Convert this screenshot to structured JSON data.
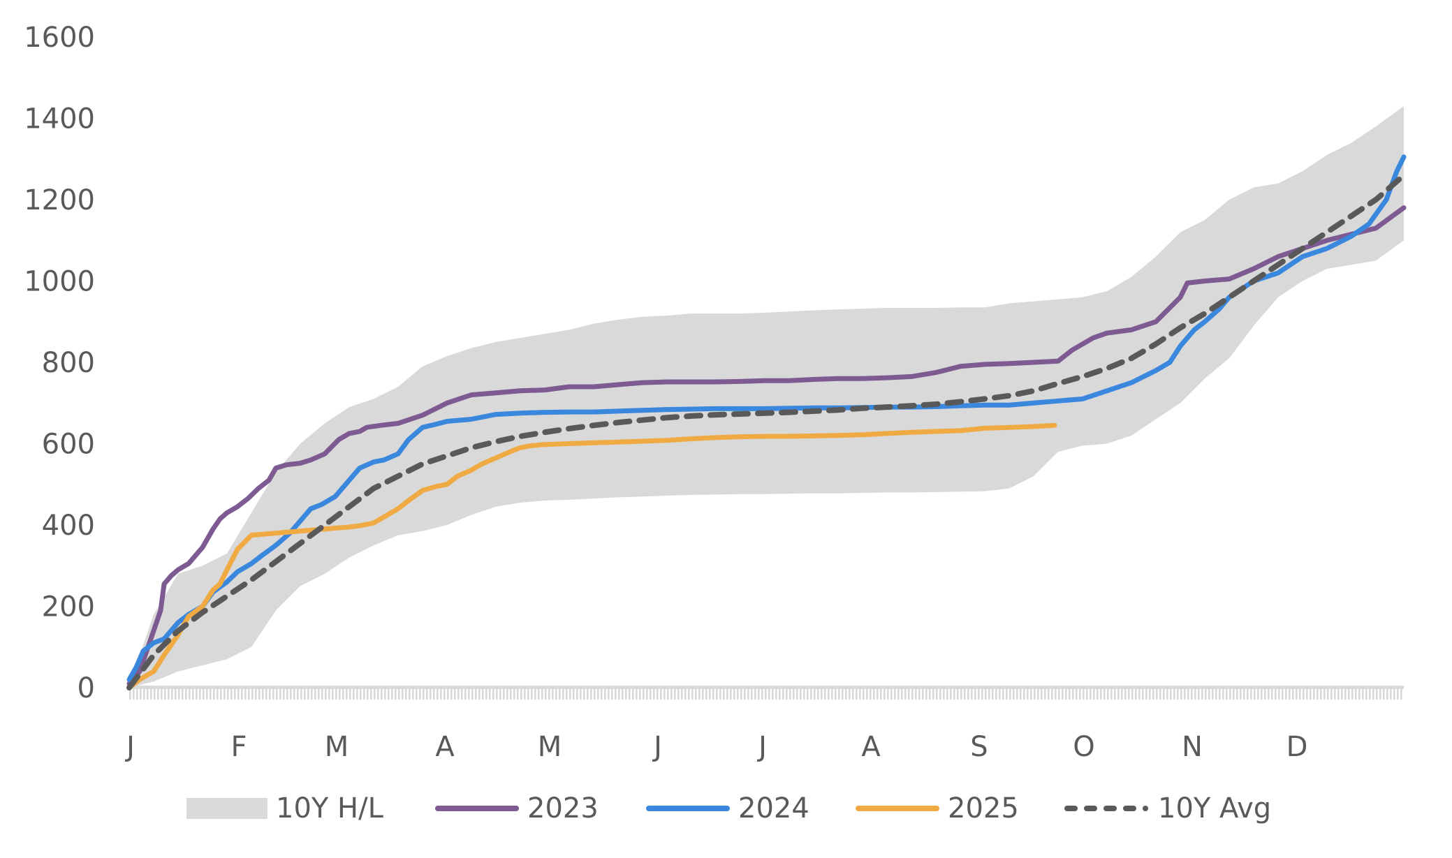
{
  "chart_data": {
    "type": "line",
    "title": "",
    "xlabel": "",
    "ylabel": "",
    "ylim": [
      0,
      1600
    ],
    "yticks": [
      0,
      200,
      400,
      600,
      800,
      1000,
      1200,
      1400,
      1600
    ],
    "xlim_days": [
      0,
      365
    ],
    "xticks": [
      {
        "label": "J",
        "day": 0
      },
      {
        "label": "F",
        "day": 31
      },
      {
        "label": "M",
        "day": 59
      },
      {
        "label": "A",
        "day": 90
      },
      {
        "label": "M",
        "day": 120
      },
      {
        "label": "J",
        "day": 151
      },
      {
        "label": "J",
        "day": 181
      },
      {
        "label": "A",
        "day": 212
      },
      {
        "label": "S",
        "day": 243
      },
      {
        "label": "O",
        "day": 273
      },
      {
        "label": "N",
        "day": 304
      },
      {
        "label": "D",
        "day": 334
      }
    ],
    "grid": false,
    "legend_position": "bottom",
    "band": {
      "name": "10Y H/L",
      "color": "#d9d9d9",
      "x": [
        0,
        7,
        14,
        21,
        28,
        35,
        42,
        49,
        56,
        63,
        70,
        77,
        84,
        91,
        98,
        105,
        112,
        119,
        126,
        133,
        140,
        147,
        154,
        161,
        168,
        175,
        182,
        189,
        196,
        203,
        210,
        217,
        224,
        231,
        238,
        245,
        252,
        259,
        266,
        273,
        280,
        287,
        294,
        301,
        308,
        315,
        322,
        329,
        336,
        343,
        350,
        357,
        365
      ],
      "high": [
        5,
        180,
        280,
        300,
        330,
        430,
        530,
        600,
        650,
        690,
        710,
        740,
        790,
        815,
        835,
        850,
        860,
        870,
        880,
        895,
        905,
        912,
        915,
        920,
        920,
        920,
        922,
        925,
        928,
        930,
        932,
        934,
        934,
        934,
        935,
        935,
        945,
        950,
        955,
        960,
        975,
        1010,
        1060,
        1120,
        1150,
        1200,
        1230,
        1240,
        1270,
        1310,
        1340,
        1380,
        1430
      ],
      "low": [
        0,
        15,
        40,
        55,
        70,
        100,
        190,
        250,
        280,
        320,
        350,
        375,
        385,
        400,
        425,
        445,
        455,
        460,
        462,
        465,
        468,
        470,
        472,
        474,
        475,
        476,
        476,
        477,
        478,
        478,
        479,
        480,
        480,
        481,
        482,
        483,
        490,
        520,
        580,
        595,
        600,
        620,
        660,
        700,
        760,
        810,
        890,
        960,
        1000,
        1030,
        1040,
        1050,
        1100
      ]
    },
    "series": [
      {
        "name": "2023",
        "color": "#7d5a92",
        "dashed": false,
        "x": [
          0,
          3,
          5,
          7,
          9,
          10,
          12,
          14,
          17,
          21,
          24,
          26,
          28,
          31,
          34,
          37,
          40,
          42,
          45,
          49,
          52,
          56,
          60,
          63,
          66,
          68,
          72,
          77,
          84,
          91,
          98,
          105,
          112,
          119,
          126,
          133,
          140,
          147,
          154,
          161,
          168,
          175,
          182,
          189,
          196,
          203,
          210,
          217,
          224,
          231,
          238,
          245,
          252,
          259,
          266,
          270,
          273,
          276,
          280,
          287,
          294,
          301,
          303,
          308,
          315,
          322,
          329,
          336,
          343,
          350,
          357,
          365
        ],
        "y": [
          10,
          40,
          90,
          140,
          190,
          255,
          275,
          290,
          305,
          345,
          390,
          415,
          430,
          445,
          465,
          490,
          510,
          540,
          548,
          552,
          560,
          575,
          610,
          625,
          630,
          640,
          645,
          650,
          670,
          700,
          720,
          725,
          730,
          732,
          740,
          740,
          745,
          750,
          752,
          752,
          752,
          753,
          755,
          755,
          758,
          760,
          760,
          762,
          765,
          775,
          790,
          795,
          797,
          800,
          803,
          830,
          845,
          860,
          872,
          880,
          900,
          960,
          995,
          1000,
          1005,
          1030,
          1060,
          1080,
          1100,
          1115,
          1130,
          1180
        ]
      },
      {
        "name": "2024",
        "color": "#3a87de",
        "dashed": false,
        "x": [
          0,
          2,
          4,
          7,
          10,
          14,
          17,
          21,
          24,
          28,
          31,
          35,
          38,
          42,
          46,
          49,
          52,
          55,
          59,
          63,
          66,
          70,
          73,
          77,
          80,
          84,
          88,
          91,
          98,
          105,
          112,
          119,
          126,
          133,
          140,
          147,
          154,
          161,
          168,
          175,
          182,
          189,
          196,
          203,
          210,
          217,
          224,
          231,
          238,
          245,
          252,
          259,
          266,
          273,
          280,
          287,
          294,
          298,
          301,
          305,
          308,
          312,
          315,
          322,
          329,
          336,
          343,
          350,
          355,
          360,
          363,
          365
        ],
        "y": [
          20,
          50,
          90,
          110,
          120,
          160,
          180,
          200,
          235,
          260,
          285,
          305,
          325,
          350,
          380,
          410,
          440,
          450,
          470,
          510,
          540,
          555,
          560,
          575,
          610,
          640,
          648,
          655,
          660,
          672,
          675,
          677,
          678,
          678,
          680,
          682,
          684,
          685,
          686,
          686,
          686,
          687,
          688,
          688,
          689,
          690,
          690,
          691,
          693,
          695,
          695,
          700,
          705,
          710,
          730,
          750,
          780,
          800,
          840,
          880,
          900,
          930,
          960,
          1000,
          1020,
          1060,
          1080,
          1110,
          1140,
          1200,
          1270,
          1305
        ]
      },
      {
        "name": "2025",
        "color": "#f0aa44",
        "dashed": false,
        "x": [
          0,
          3,
          7,
          10,
          14,
          17,
          21,
          24,
          26,
          28,
          31,
          35,
          42,
          49,
          56,
          63,
          66,
          70,
          73,
          77,
          80,
          84,
          88,
          91,
          94,
          98,
          101,
          105,
          109,
          112,
          115,
          119,
          126,
          133,
          140,
          147,
          154,
          161,
          168,
          175,
          182,
          189,
          196,
          203,
          210,
          217,
          224,
          231,
          238,
          245,
          252,
          259,
          265
        ],
        "y": [
          0,
          20,
          40,
          80,
          130,
          175,
          200,
          240,
          255,
          290,
          340,
          375,
          380,
          385,
          390,
          395,
          398,
          405,
          420,
          440,
          460,
          485,
          495,
          500,
          520,
          535,
          550,
          565,
          580,
          590,
          595,
          598,
          600,
          602,
          604,
          606,
          608,
          612,
          615,
          617,
          618,
          618,
          619,
          620,
          622,
          625,
          628,
          630,
          632,
          638,
          640,
          642,
          645
        ]
      },
      {
        "name": "10Y Avg",
        "color": "#595959",
        "dashed": true,
        "x": [
          0,
          7,
          14,
          21,
          28,
          35,
          42,
          49,
          56,
          63,
          70,
          77,
          84,
          91,
          98,
          105,
          112,
          119,
          126,
          133,
          140,
          147,
          154,
          161,
          168,
          175,
          182,
          189,
          196,
          203,
          210,
          217,
          224,
          231,
          238,
          245,
          252,
          259,
          266,
          273,
          280,
          287,
          294,
          301,
          308,
          315,
          322,
          329,
          336,
          343,
          350,
          357,
          365
        ],
        "y": [
          0,
          80,
          140,
          185,
          225,
          265,
          310,
          355,
          400,
          445,
          490,
          520,
          550,
          570,
          590,
          605,
          618,
          628,
          637,
          645,
          652,
          658,
          664,
          668,
          671,
          673,
          675,
          677,
          680,
          683,
          687,
          690,
          693,
          697,
          703,
          710,
          718,
          730,
          748,
          765,
          785,
          810,
          845,
          885,
          920,
          960,
          1000,
          1040,
          1080,
          1120,
          1160,
          1200,
          1260
        ]
      }
    ]
  },
  "legend": {
    "items": [
      {
        "label": "10Y H/L",
        "kind": "band",
        "color": "#d9d9d9"
      },
      {
        "label": "2023",
        "kind": "line",
        "color": "#7d5a92"
      },
      {
        "label": "2024",
        "kind": "line",
        "color": "#3a87de"
      },
      {
        "label": "2025",
        "kind": "line",
        "color": "#f0aa44"
      },
      {
        "label": "10Y Avg",
        "kind": "dash",
        "color": "#595959"
      }
    ]
  }
}
